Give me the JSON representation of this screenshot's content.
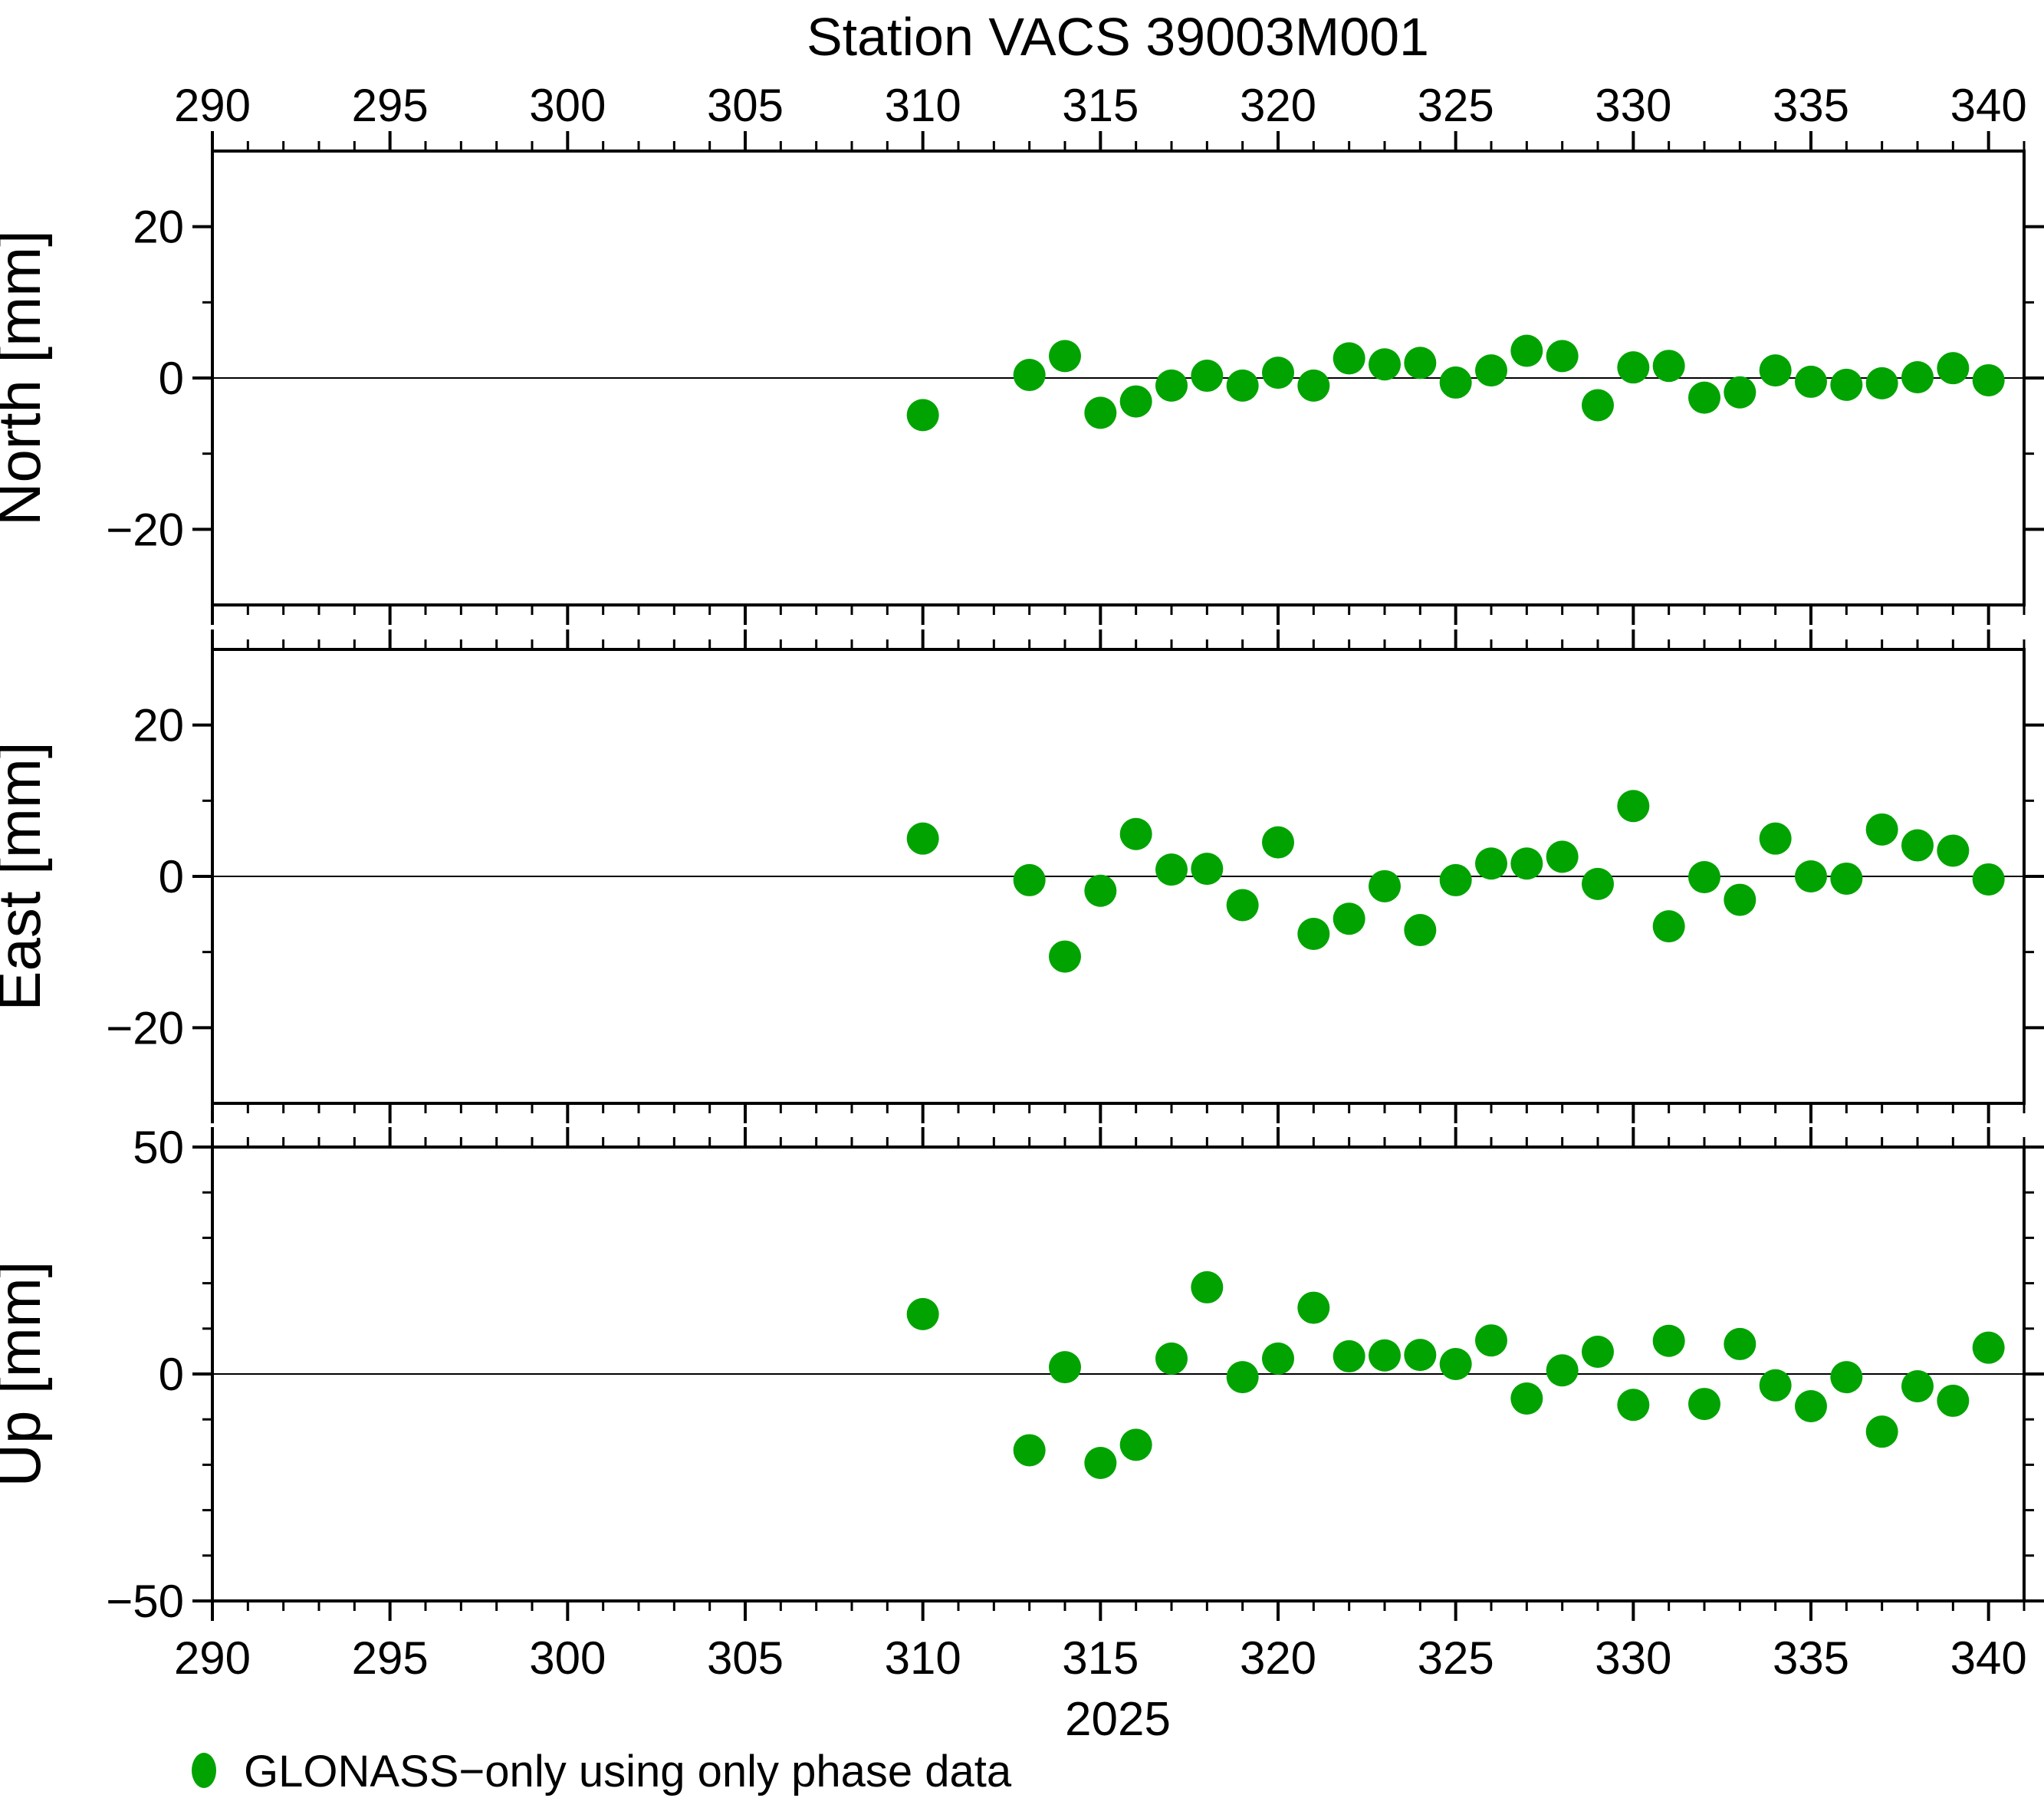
{
  "title": "Station VACS 39003M001",
  "chart_data": {
    "type": "scatter",
    "title": "Station VACS 39003M001",
    "year_label": "2025",
    "point_color": "#00a300",
    "frame_color": "#000000",
    "x_axis": {
      "range": [
        290,
        341
      ],
      "major_ticks": [
        290,
        295,
        300,
        305,
        310,
        315,
        320,
        325,
        330,
        335,
        340
      ],
      "minor_step": 1,
      "labels_top": true,
      "labels_bottom": true
    },
    "x": [
      310,
      313,
      314,
      315,
      316,
      317,
      318,
      319,
      320,
      321,
      322,
      323,
      324,
      325,
      326,
      327,
      328,
      329,
      330,
      331,
      332,
      333,
      334,
      335,
      336,
      337,
      338,
      339,
      340
    ],
    "panels": [
      {
        "id": "north",
        "ylabel": "North [mm]",
        "ylim": [
          -30,
          30
        ],
        "major_ticks": [
          -20,
          0,
          20
        ],
        "major_tick_labels": [
          "−20",
          "0",
          "20"
        ],
        "minor_ticks": [
          -10,
          10
        ],
        "zero_line": true,
        "values": [
          -4.9,
          0.4,
          2.9,
          -4.6,
          -3.1,
          -1.0,
          0.3,
          -1.0,
          0.7,
          -1.0,
          2.6,
          1.8,
          2.0,
          -0.6,
          1.0,
          3.6,
          2.9,
          -3.6,
          1.4,
          1.6,
          -2.6,
          -1.9,
          1.0,
          -0.5,
          -0.9,
          -0.7,
          0.1,
          1.3,
          -0.3
        ]
      },
      {
        "id": "east",
        "ylabel": "East [mm]",
        "ylim": [
          -30,
          30
        ],
        "major_ticks": [
          -20,
          0,
          20
        ],
        "major_tick_labels": [
          "−20",
          "0",
          "20"
        ],
        "minor_ticks": [
          -10,
          10
        ],
        "zero_line": true,
        "values": [
          5.0,
          -0.5,
          -10.6,
          -1.9,
          5.6,
          0.9,
          1.0,
          -3.8,
          4.5,
          -7.6,
          -5.6,
          -1.3,
          -7.1,
          -0.5,
          1.7,
          1.7,
          2.6,
          -1.0,
          9.3,
          -6.6,
          -0.1,
          -3.1,
          5.0,
          0.0,
          -0.3,
          6.2,
          4.1,
          3.4,
          -0.4
        ]
      },
      {
        "id": "up",
        "ylabel": "Up [mm]",
        "ylim": [
          -50,
          50
        ],
        "major_ticks": [
          -50,
          0,
          50
        ],
        "major_tick_labels": [
          "−50",
          "0",
          "50"
        ],
        "minor_ticks": [
          -40,
          -30,
          -20,
          -10,
          10,
          20,
          30,
          40
        ],
        "zero_line": true,
        "values": [
          13.2,
          -16.8,
          1.5,
          -19.6,
          -15.6,
          3.4,
          19.1,
          -0.7,
          3.4,
          14.6,
          3.9,
          4.1,
          4.2,
          2.2,
          7.4,
          -5.4,
          0.8,
          4.9,
          -6.8,
          7.3,
          -6.6,
          6.6,
          -2.5,
          -7.1,
          -0.7,
          -12.7,
          -2.7,
          -5.9,
          5.8
        ]
      }
    ],
    "legend": {
      "marker": "circle-icon",
      "label": "GLONASS−only using only phase data"
    }
  }
}
